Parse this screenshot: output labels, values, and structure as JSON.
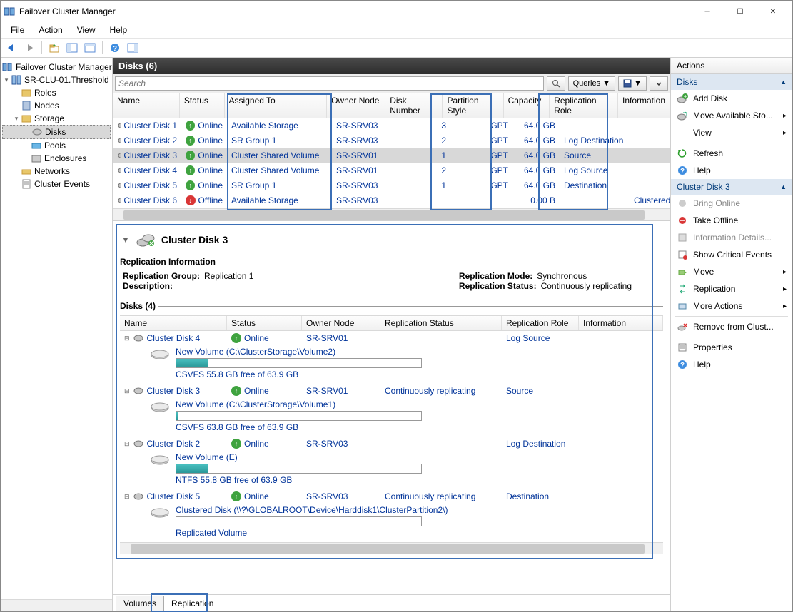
{
  "window": {
    "title": "Failover Cluster Manager"
  },
  "menu": [
    "File",
    "Action",
    "View",
    "Help"
  ],
  "tree": {
    "root": "Failover Cluster Manager",
    "cluster": "SR-CLU-01.Threshold",
    "roles": "Roles",
    "nodes": "Nodes",
    "storage": "Storage",
    "disks": "Disks",
    "pools": "Pools",
    "enclosures": "Enclosures",
    "networks": "Networks",
    "events": "Cluster Events"
  },
  "center": {
    "title": "Disks (6)",
    "search_placeholder": "Search",
    "queries": "Queries",
    "columns": {
      "name": "Name",
      "status": "Status",
      "assigned": "Assigned To",
      "owner": "Owner Node",
      "disknum": "Disk Number",
      "part": "Partition Style",
      "cap": "Capacity",
      "role": "Replication Role",
      "info": "Information"
    },
    "rows": [
      {
        "name": "Cluster Disk 1",
        "status": "Online",
        "assigned": "Available Storage",
        "owner": "SR-SRV03",
        "num": "3",
        "part": "GPT",
        "cap": "64.0 GB",
        "role": "",
        "info": "",
        "online": true
      },
      {
        "name": "Cluster Disk 2",
        "status": "Online",
        "assigned": "SR Group 1",
        "owner": "SR-SRV03",
        "num": "2",
        "part": "GPT",
        "cap": "64.0 GB",
        "role": "Log Destination",
        "info": "",
        "online": true
      },
      {
        "name": "Cluster Disk 3",
        "status": "Online",
        "assigned": "Cluster Shared Volume",
        "owner": "SR-SRV01",
        "num": "1",
        "part": "GPT",
        "cap": "64.0 GB",
        "role": "Source",
        "info": "",
        "online": true,
        "selected": true
      },
      {
        "name": "Cluster Disk 4",
        "status": "Online",
        "assigned": "Cluster Shared Volume",
        "owner": "SR-SRV01",
        "num": "2",
        "part": "GPT",
        "cap": "64.0 GB",
        "role": "Log Source",
        "info": "",
        "online": true
      },
      {
        "name": "Cluster Disk 5",
        "status": "Online",
        "assigned": "SR Group 1",
        "owner": "SR-SRV03",
        "num": "1",
        "part": "GPT",
        "cap": "64.0 GB",
        "role": "Destination",
        "info": "",
        "online": true
      },
      {
        "name": "Cluster Disk 6",
        "status": "Offline",
        "assigned": "Available Storage",
        "owner": "SR-SRV03",
        "num": "",
        "part": "",
        "cap": "0.00 B",
        "role": "",
        "info": "Clustered storage",
        "online": false
      }
    ]
  },
  "detail": {
    "title": "Cluster Disk 3",
    "section1": "Replication Information",
    "group_k": "Replication Group:",
    "group_v": "Replication 1",
    "desc_k": "Description:",
    "desc_v": "",
    "mode_k": "Replication Mode:",
    "mode_v": "Synchronous",
    "status_k": "Replication Status:",
    "status_v": "Continuously replicating",
    "section2": "Disks (4)",
    "columns": {
      "name": "Name",
      "status": "Status",
      "owner": "Owner Node",
      "rstatus": "Replication Status",
      "role": "Replication Role",
      "info": "Information"
    },
    "rows": [
      {
        "name": "Cluster Disk 4",
        "status": "Online",
        "owner": "SR-SRV01",
        "rstatus": "",
        "role": "Log Source",
        "vol": "New Volume (C:\\ClusterStorage\\Volume2)",
        "free": "CSVFS 55.8 GB free of 63.9 GB",
        "used_pct": 13
      },
      {
        "name": "Cluster Disk 3",
        "status": "Online",
        "owner": "SR-SRV01",
        "rstatus": "Continuously replicating",
        "role": "Source",
        "vol": "New Volume (C:\\ClusterStorage\\Volume1)",
        "free": "CSVFS 63.8 GB free of 63.9 GB",
        "used_pct": 1
      },
      {
        "name": "Cluster Disk 2",
        "status": "Online",
        "owner": "SR-SRV03",
        "rstatus": "",
        "role": "Log Destination",
        "vol": "New Volume (E)",
        "free": "NTFS 55.8 GB free of 63.9 GB",
        "used_pct": 13
      },
      {
        "name": "Cluster Disk 5",
        "status": "Online",
        "owner": "SR-SRV03",
        "rstatus": "Continuously replicating",
        "role": "Destination",
        "vol": "Clustered Disk (\\\\?\\GLOBALROOT\\Device\\Harddisk1\\ClusterPartition2\\)",
        "free": "Replicated Volume",
        "used_pct": 0
      }
    ]
  },
  "tabs": {
    "volumes": "Volumes",
    "replication": "Replication"
  },
  "actions": {
    "header": "Actions",
    "group1": "Disks",
    "add_disk": "Add Disk",
    "move_avail": "Move Available Sto...",
    "view": "View",
    "refresh": "Refresh",
    "help": "Help",
    "group2": "Cluster Disk 3",
    "bring_online": "Bring Online",
    "take_offline": "Take Offline",
    "info_details": "Information Details...",
    "crit_events": "Show Critical Events",
    "move": "Move",
    "replication": "Replication",
    "more": "More Actions",
    "remove": "Remove from Clust...",
    "properties": "Properties",
    "help2": "Help"
  }
}
